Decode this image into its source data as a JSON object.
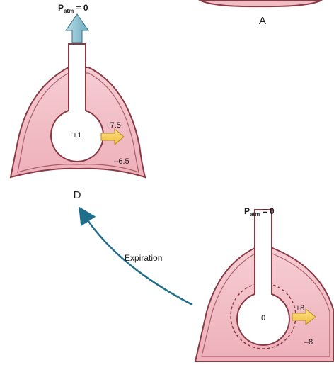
{
  "panels": {
    "a": {
      "letter": "A"
    },
    "d": {
      "letter": "D",
      "patm_main": "P",
      "patm_sub": "atm",
      "patm_value": " = 0",
      "alveolar_pressure": "+1",
      "transpulmonary_pressure": "+7.5",
      "pleural_pressure": "–6.5"
    },
    "c": {
      "patm_main": "P",
      "patm_sub": "atm",
      "patm_value": " = 0",
      "alveolar_pressure": "0",
      "transpulmonary_pressure": "+8",
      "pleural_pressure": "–8"
    }
  },
  "transition": {
    "label": "Expiration"
  },
  "colors": {
    "lung_fill": "#f2bcc4",
    "lung_outline": "#8a3a44",
    "airflow_arrow": "#8fc4d4",
    "pressure_arrow": "#f6cf55",
    "cycle_arrow": "#1f6f8b"
  }
}
